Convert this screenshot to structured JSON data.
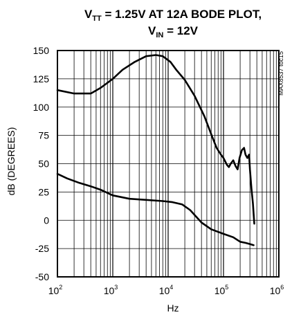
{
  "chart_data": {
    "type": "line",
    "title_line1": {
      "pre": "V",
      "sub": "TT",
      "post": " = 1.25V AT 12A BODE PLOT,"
    },
    "title_line2": {
      "pre": "V",
      "sub": "IN",
      "post": " = 12V"
    },
    "xlabel": "Hz",
    "ylabel": "dB (DEGREES)",
    "figure_ref": "MAX8537 toc15",
    "x_scale": "log",
    "xlim": [
      100,
      1000000
    ],
    "ylim": [
      -50,
      150
    ],
    "x_ticks": [
      {
        "base": "10",
        "exp": "2",
        "value": 100
      },
      {
        "base": "10",
        "exp": "3",
        "value": 1000
      },
      {
        "base": "10",
        "exp": "4",
        "value": 10000
      },
      {
        "base": "10",
        "exp": "5",
        "value": 100000
      },
      {
        "base": "10",
        "exp": "6",
        "value": 1000000
      }
    ],
    "y_ticks": [
      "-50",
      "-25",
      "0",
      "25",
      "50",
      "75",
      "100",
      "125",
      "150"
    ],
    "grid": true,
    "line_color": "#000000",
    "series": [
      {
        "points": [
          [
            100,
            115
          ],
          [
            200,
            112
          ],
          [
            400,
            112
          ],
          [
            600,
            117
          ],
          [
            1000,
            125
          ],
          [
            1500,
            133
          ],
          [
            2500,
            140
          ],
          [
            4000,
            145
          ],
          [
            6000,
            146
          ],
          [
            8000,
            145
          ],
          [
            11000,
            140
          ],
          [
            14000,
            133
          ],
          [
            20000,
            124
          ],
          [
            30000,
            110
          ],
          [
            45000,
            92
          ],
          [
            60000,
            76
          ],
          [
            75000,
            64
          ],
          [
            90000,
            58
          ],
          [
            100000,
            55
          ],
          [
            115000,
            49
          ],
          [
            125000,
            47
          ],
          [
            135000,
            50
          ],
          [
            150000,
            53
          ],
          [
            165000,
            48
          ],
          [
            180000,
            45
          ],
          [
            195000,
            55
          ],
          [
            215000,
            62
          ],
          [
            235000,
            64
          ],
          [
            250000,
            58
          ],
          [
            270000,
            55
          ],
          [
            290000,
            58
          ],
          [
            300000,
            45
          ],
          [
            320000,
            28
          ],
          [
            340000,
            15
          ],
          [
            360000,
            -3
          ]
        ]
      },
      {
        "points": [
          [
            100,
            41
          ],
          [
            150,
            37
          ],
          [
            250,
            33
          ],
          [
            400,
            30
          ],
          [
            600,
            27
          ],
          [
            1000,
            22
          ],
          [
            2000,
            19
          ],
          [
            4000,
            18
          ],
          [
            8000,
            17
          ],
          [
            12000,
            16
          ],
          [
            18000,
            14
          ],
          [
            25000,
            9
          ],
          [
            40000,
            -2
          ],
          [
            60000,
            -8
          ],
          [
            100000,
            -12
          ],
          [
            150000,
            -15
          ],
          [
            200000,
            -19
          ],
          [
            250000,
            -20
          ],
          [
            300000,
            -21
          ],
          [
            350000,
            -22
          ]
        ]
      }
    ]
  }
}
